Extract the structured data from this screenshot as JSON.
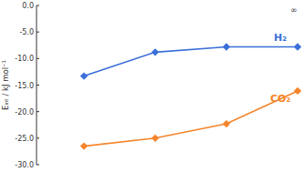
{
  "chart_data": {
    "type": "line",
    "y_label": "Eᵢₙₜ / kJ mol⁻¹",
    "annotations": [
      "∞"
    ],
    "categories": [
      null,
      null,
      null,
      null
    ],
    "series": [
      {
        "name": "H₂",
        "color": "#3b6fd9",
        "marker": "diamond",
        "values": [
          -13.3,
          -8.8,
          -7.8,
          -7.8
        ]
      },
      {
        "name": "CO₂",
        "color": "#f5842a",
        "marker": "diamond",
        "values": [
          -26.5,
          -25.0,
          -22.3,
          -16.1
        ]
      }
    ],
    "ylim": [
      -30,
      0
    ],
    "yticks": [
      {
        "value": 0,
        "label": "0.0"
      },
      {
        "value": -5,
        "label": "-5.0"
      },
      {
        "value": -10,
        "label": "-10.0"
      },
      {
        "value": -15,
        "label": "-15.0"
      },
      {
        "value": -20,
        "label": "-20.0"
      },
      {
        "value": -25,
        "label": "-25.0"
      },
      {
        "value": -30,
        "label": "-30.0"
      }
    ],
    "grid": false,
    "tick_labels": "y"
  }
}
